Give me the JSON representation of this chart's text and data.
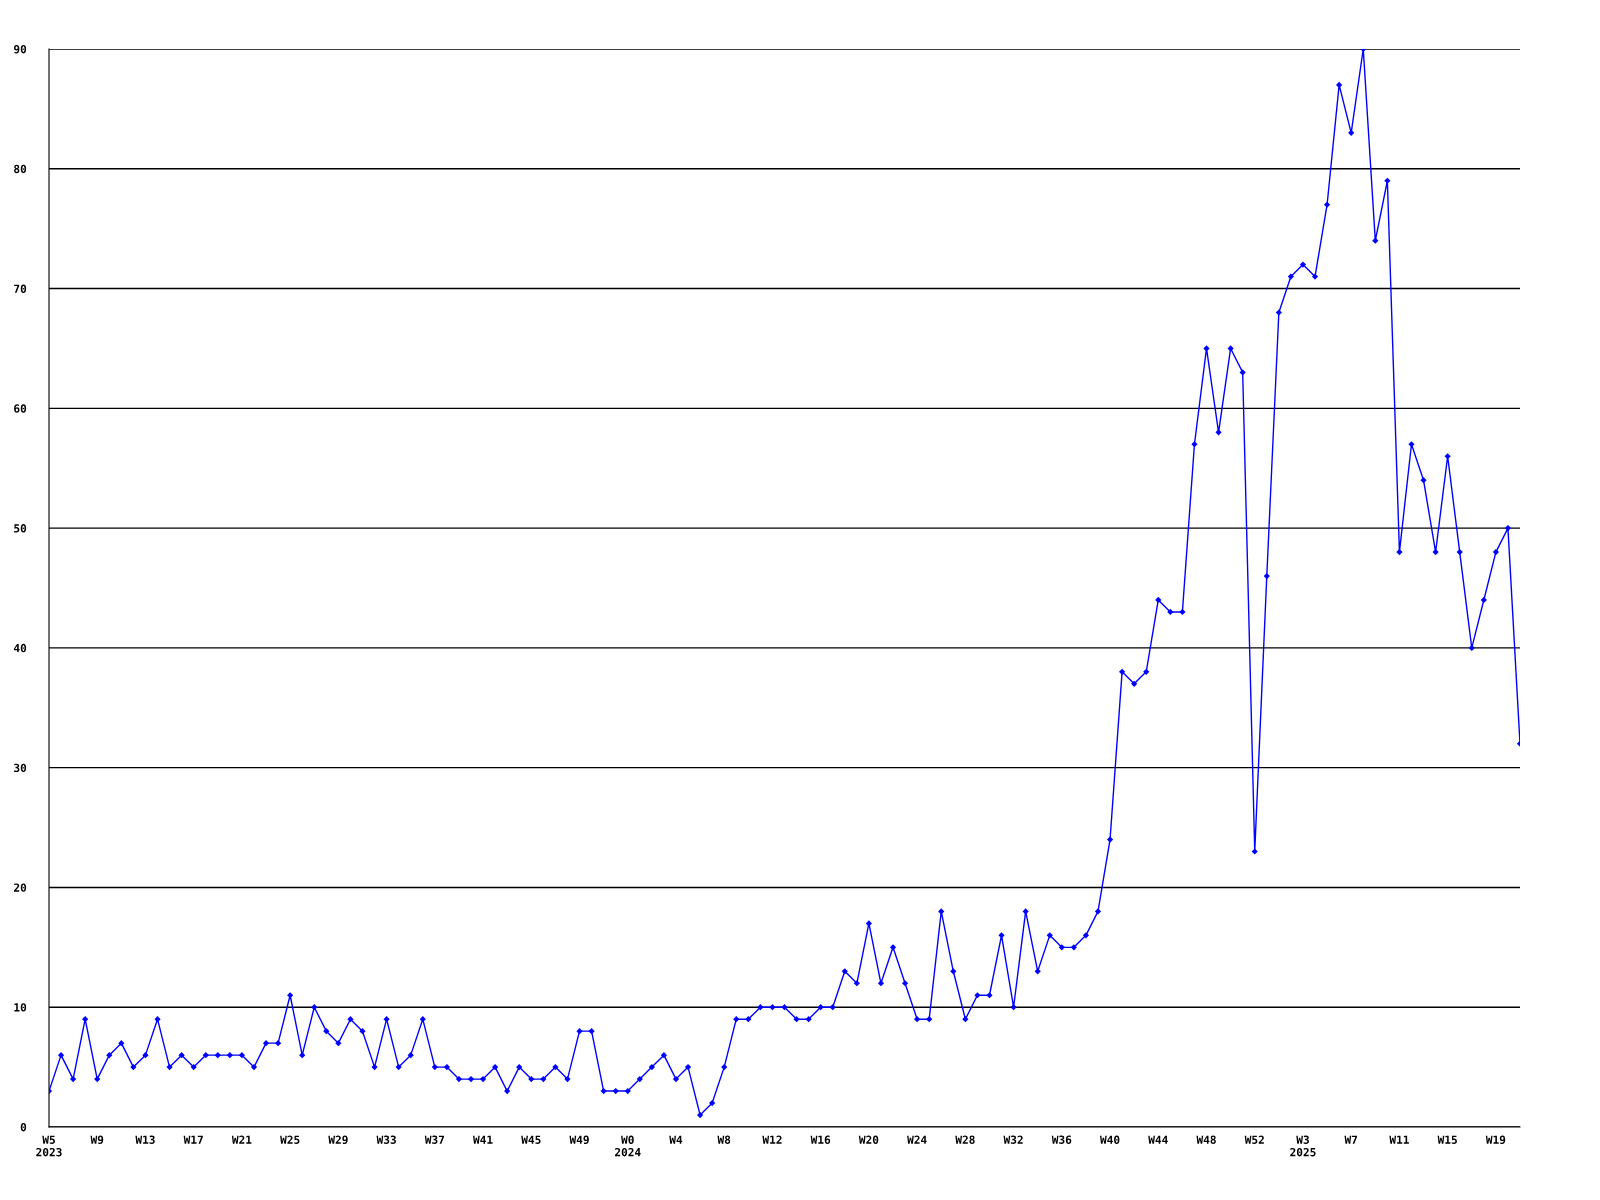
{
  "chart_data": {
    "type": "line",
    "categories": [
      "W5\n2023",
      null,
      null,
      null,
      "W9",
      null,
      null,
      null,
      "W13",
      null,
      null,
      null,
      "W17",
      null,
      null,
      null,
      "W21",
      null,
      null,
      null,
      "W25",
      null,
      null,
      null,
      "W29",
      null,
      null,
      null,
      "W33",
      null,
      null,
      null,
      "W37",
      null,
      null,
      null,
      "W41",
      null,
      null,
      null,
      "W45",
      null,
      null,
      null,
      "W49",
      null,
      null,
      null,
      "W0\n2024",
      null,
      null,
      null,
      "W4",
      null,
      null,
      null,
      "W8",
      null,
      null,
      null,
      "W12",
      null,
      null,
      null,
      "W16",
      null,
      null,
      null,
      "W20",
      null,
      null,
      null,
      "W24",
      null,
      null,
      null,
      "W28",
      null,
      null,
      null,
      "W32",
      null,
      null,
      null,
      "W36",
      null,
      null,
      null,
      "W40",
      null,
      null,
      null,
      "W44",
      null,
      null,
      null,
      "W48",
      null,
      null,
      null,
      "W52",
      null,
      null,
      null,
      "W3\n2025",
      null,
      null,
      null,
      "W7",
      null,
      null,
      null,
      "W11",
      null,
      null,
      null,
      "W15",
      null,
      null,
      null,
      "W19",
      null,
      null
    ],
    "series": [
      {
        "color": "#0000ff",
        "values": [
          3,
          6,
          4,
          9,
          4,
          6,
          7,
          5,
          6,
          9,
          5,
          6,
          5,
          6,
          6,
          6,
          6,
          5,
          7,
          7,
          11,
          6,
          10,
          8,
          7,
          9,
          8,
          5,
          9,
          5,
          6,
          9,
          5,
          5,
          4,
          4,
          4,
          5,
          3,
          5,
          4,
          4,
          5,
          4,
          8,
          8,
          3,
          3,
          3,
          4,
          5,
          6,
          4,
          5,
          1,
          2,
          5,
          9,
          9,
          10,
          10,
          10,
          9,
          9,
          10,
          10,
          13,
          12,
          17,
          12,
          15,
          12,
          9,
          9,
          18,
          13,
          9,
          11,
          11,
          16,
          10,
          18,
          13,
          16,
          15,
          15,
          16,
          18,
          24,
          38,
          37,
          38,
          44,
          43,
          43,
          57,
          65,
          58,
          65,
          63,
          23,
          46,
          68,
          71,
          72,
          71,
          77,
          87,
          83,
          90,
          74,
          79,
          48,
          57,
          54,
          48,
          56,
          48,
          40,
          44,
          48,
          50,
          32
        ]
      }
    ],
    "ylim": [
      0,
      90
    ],
    "yticks": [
      0,
      10,
      20,
      30,
      40,
      50,
      60,
      70,
      80,
      90
    ],
    "grid": "y",
    "marker": "diamond",
    "line_style": "solid"
  }
}
